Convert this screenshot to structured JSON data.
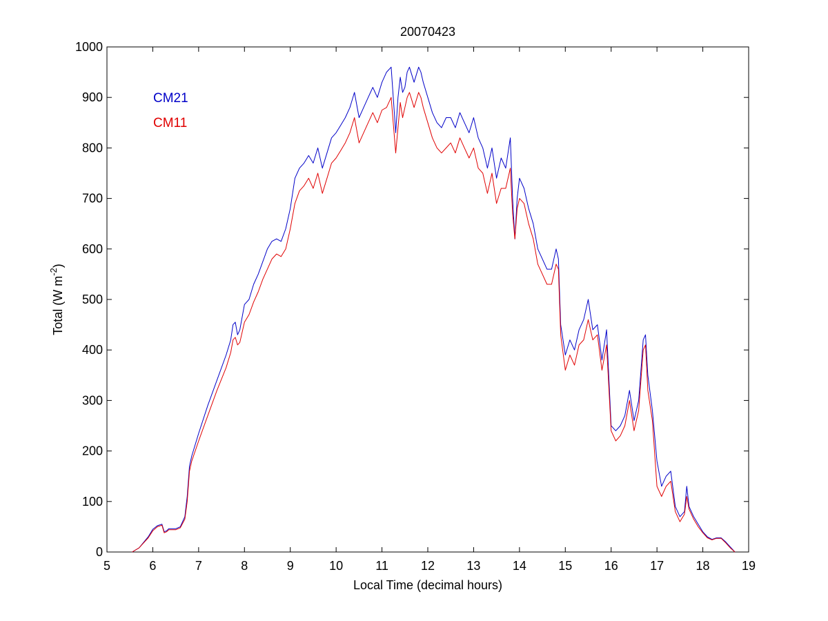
{
  "chart_data": {
    "type": "line",
    "title": "20070423",
    "xlabel": "Local Time (decimal hours)",
    "ylabel": {
      "prefix": "Total (W m",
      "superscript": "-2",
      "suffix": ")"
    },
    "xlim": [
      5,
      19
    ],
    "ylim": [
      0,
      1000
    ],
    "xticks": [
      5,
      6,
      7,
      8,
      9,
      10,
      11,
      12,
      13,
      14,
      15,
      16,
      17,
      18,
      19
    ],
    "yticks": [
      0,
      100,
      200,
      300,
      400,
      500,
      600,
      700,
      800,
      900,
      1000
    ],
    "grid": false,
    "legend_position": "top-left",
    "series": [
      {
        "name": "CM21",
        "color": "#0000c8",
        "x": [
          5.55,
          5.7,
          5.9,
          6.0,
          6.1,
          6.2,
          6.25,
          6.3,
          6.35,
          6.5,
          6.6,
          6.7,
          6.75,
          6.8,
          6.85,
          7.0,
          7.2,
          7.4,
          7.6,
          7.7,
          7.75,
          7.8,
          7.85,
          7.9,
          8.0,
          8.1,
          8.2,
          8.3,
          8.4,
          8.5,
          8.6,
          8.7,
          8.8,
          8.9,
          9.0,
          9.1,
          9.2,
          9.3,
          9.4,
          9.5,
          9.6,
          9.7,
          9.8,
          9.9,
          10.0,
          10.1,
          10.2,
          10.3,
          10.4,
          10.5,
          10.6,
          10.7,
          10.8,
          10.9,
          11.0,
          11.1,
          11.2,
          11.3,
          11.35,
          11.4,
          11.45,
          11.5,
          11.55,
          11.6,
          11.7,
          11.8,
          11.85,
          11.9,
          12.0,
          12.1,
          12.2,
          12.3,
          12.4,
          12.5,
          12.6,
          12.7,
          12.8,
          12.9,
          13.0,
          13.1,
          13.2,
          13.3,
          13.4,
          13.5,
          13.6,
          13.7,
          13.8,
          13.85,
          13.9,
          13.95,
          14.0,
          14.1,
          14.2,
          14.3,
          14.4,
          14.5,
          14.6,
          14.7,
          14.8,
          14.85,
          14.9,
          15.0,
          15.1,
          15.2,
          15.3,
          15.4,
          15.5,
          15.6,
          15.7,
          15.8,
          15.9,
          16.0,
          16.1,
          16.2,
          16.3,
          16.4,
          16.5,
          16.6,
          16.7,
          16.75,
          16.8,
          16.9,
          17.0,
          17.1,
          17.2,
          17.3,
          17.4,
          17.5,
          17.6,
          17.65,
          17.7,
          17.8,
          17.9,
          18.0,
          18.1,
          18.2,
          18.3,
          18.4,
          18.5,
          18.6,
          18.7
        ],
        "y": [
          0,
          8,
          30,
          45,
          52,
          55,
          40,
          42,
          46,
          46,
          50,
          70,
          110,
          170,
          190,
          235,
          290,
          340,
          390,
          420,
          450,
          455,
          430,
          440,
          490,
          500,
          530,
          550,
          575,
          600,
          615,
          620,
          615,
          640,
          680,
          740,
          760,
          770,
          785,
          770,
          800,
          760,
          790,
          820,
          830,
          845,
          860,
          880,
          910,
          860,
          880,
          900,
          920,
          900,
          930,
          950,
          960,
          830,
          900,
          940,
          910,
          920,
          950,
          960,
          930,
          960,
          950,
          930,
          900,
          870,
          850,
          840,
          860,
          860,
          840,
          870,
          850,
          830,
          860,
          820,
          800,
          760,
          800,
          740,
          780,
          760,
          820,
          700,
          620,
          700,
          740,
          720,
          680,
          650,
          600,
          580,
          560,
          560,
          600,
          580,
          450,
          390,
          420,
          400,
          440,
          460,
          500,
          440,
          450,
          380,
          440,
          250,
          240,
          250,
          270,
          320,
          260,
          300,
          420,
          430,
          350,
          280,
          180,
          130,
          150,
          160,
          90,
          70,
          80,
          130,
          90,
          70,
          55,
          40,
          30,
          25,
          28,
          28,
          20,
          10,
          0
        ]
      },
      {
        "name": "CM11",
        "color": "#e00000",
        "x": [
          5.55,
          5.7,
          5.9,
          6.0,
          6.1,
          6.2,
          6.25,
          6.3,
          6.35,
          6.5,
          6.6,
          6.7,
          6.75,
          6.8,
          6.85,
          7.0,
          7.2,
          7.4,
          7.6,
          7.7,
          7.75,
          7.8,
          7.85,
          7.9,
          8.0,
          8.1,
          8.2,
          8.3,
          8.4,
          8.5,
          8.6,
          8.7,
          8.8,
          8.9,
          9.0,
          9.1,
          9.2,
          9.3,
          9.4,
          9.5,
          9.6,
          9.7,
          9.8,
          9.9,
          10.0,
          10.1,
          10.2,
          10.3,
          10.4,
          10.5,
          10.6,
          10.7,
          10.8,
          10.9,
          11.0,
          11.1,
          11.2,
          11.3,
          11.35,
          11.4,
          11.45,
          11.5,
          11.55,
          11.6,
          11.7,
          11.8,
          11.85,
          11.9,
          12.0,
          12.1,
          12.2,
          12.3,
          12.4,
          12.5,
          12.6,
          12.7,
          12.8,
          12.9,
          13.0,
          13.1,
          13.2,
          13.3,
          13.4,
          13.5,
          13.6,
          13.7,
          13.8,
          13.85,
          13.9,
          13.95,
          14.0,
          14.1,
          14.2,
          14.3,
          14.4,
          14.5,
          14.6,
          14.7,
          14.8,
          14.85,
          14.9,
          15.0,
          15.1,
          15.2,
          15.3,
          15.4,
          15.5,
          15.6,
          15.7,
          15.8,
          15.9,
          16.0,
          16.1,
          16.2,
          16.3,
          16.4,
          16.5,
          16.6,
          16.7,
          16.75,
          16.8,
          16.9,
          17.0,
          17.1,
          17.2,
          17.3,
          17.4,
          17.5,
          17.6,
          17.65,
          17.7,
          17.8,
          17.9,
          18.0,
          18.1,
          18.2,
          18.3,
          18.4,
          18.5,
          18.6,
          18.7
        ],
        "y": [
          0,
          8,
          28,
          42,
          50,
          53,
          38,
          40,
          44,
          44,
          48,
          65,
          100,
          160,
          180,
          220,
          270,
          320,
          365,
          395,
          420,
          425,
          410,
          415,
          455,
          470,
          495,
          515,
          540,
          560,
          580,
          590,
          585,
          600,
          640,
          690,
          715,
          725,
          740,
          720,
          750,
          710,
          740,
          770,
          780,
          795,
          810,
          830,
          860,
          810,
          830,
          850,
          870,
          850,
          875,
          880,
          900,
          790,
          840,
          890,
          860,
          880,
          900,
          910,
          880,
          910,
          900,
          880,
          850,
          820,
          800,
          790,
          800,
          810,
          790,
          820,
          800,
          780,
          800,
          760,
          750,
          710,
          750,
          690,
          720,
          720,
          760,
          670,
          620,
          680,
          700,
          690,
          650,
          620,
          570,
          550,
          530,
          530,
          570,
          560,
          430,
          360,
          390,
          370,
          410,
          420,
          460,
          420,
          430,
          360,
          410,
          240,
          220,
          230,
          250,
          300,
          240,
          280,
          400,
          410,
          320,
          260,
          130,
          110,
          130,
          140,
          80,
          60,
          75,
          110,
          85,
          65,
          50,
          38,
          28,
          24,
          27,
          27,
          18,
          8,
          0
        ]
      }
    ]
  }
}
